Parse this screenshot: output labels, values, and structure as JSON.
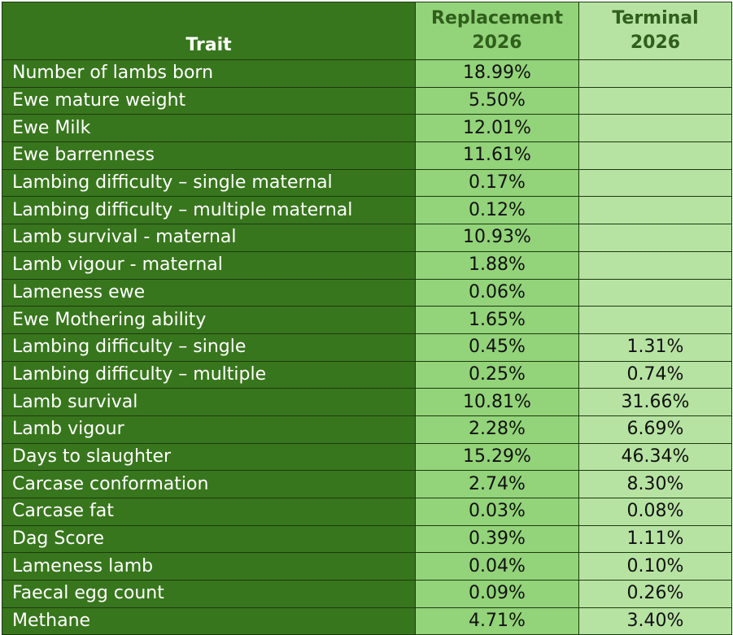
{
  "header": {
    "trait": "Trait",
    "replacement_line1": "Replacement",
    "replacement_line2": "2026",
    "terminal_line1": "Terminal",
    "terminal_line2": "2026"
  },
  "colors": {
    "trait_bg": "#38761d",
    "replacement_bg": "#93d37a",
    "terminal_bg": "#b6e3a2",
    "header_text": "#2f5f1a"
  },
  "rows": [
    {
      "trait": "Number of lambs born",
      "replacement": "18.99%",
      "terminal": ""
    },
    {
      "trait": "Ewe mature weight",
      "replacement": "5.50%",
      "terminal": ""
    },
    {
      "trait": "Ewe Milk",
      "replacement": "12.01%",
      "terminal": ""
    },
    {
      "trait": "Ewe barrenness",
      "replacement": "11.61%",
      "terminal": ""
    },
    {
      "trait": "Lambing difficulty – single maternal",
      "replacement": "0.17%",
      "terminal": ""
    },
    {
      "trait": "Lambing difficulty – multiple maternal",
      "replacement": "0.12%",
      "terminal": ""
    },
    {
      "trait": "Lamb survival - maternal",
      "replacement": "10.93%",
      "terminal": ""
    },
    {
      "trait": "Lamb vigour - maternal",
      "replacement": "1.88%",
      "terminal": ""
    },
    {
      "trait": "Lameness ewe",
      "replacement": "0.06%",
      "terminal": ""
    },
    {
      "trait": "Ewe Mothering ability",
      "replacement": "1.65%",
      "terminal": ""
    },
    {
      "trait": "Lambing difficulty – single",
      "replacement": "0.45%",
      "terminal": "1.31%"
    },
    {
      "trait": "Lambing difficulty – multiple",
      "replacement": "0.25%",
      "terminal": "0.74%"
    },
    {
      "trait": "Lamb survival",
      "replacement": "10.81%",
      "terminal": "31.66%"
    },
    {
      "trait": "Lamb vigour",
      "replacement": "2.28%",
      "terminal": "6.69%"
    },
    {
      "trait": "Days to slaughter",
      "replacement": "15.29%",
      "terminal": "46.34%"
    },
    {
      "trait": "Carcase conformation",
      "replacement": "2.74%",
      "terminal": "8.30%"
    },
    {
      "trait": "Carcase fat",
      "replacement": "0.03%",
      "terminal": "0.08%"
    },
    {
      "trait": "Dag Score",
      "replacement": "0.39%",
      "terminal": "1.11%"
    },
    {
      "trait": "Lameness lamb",
      "replacement": "0.04%",
      "terminal": "0.10%"
    },
    {
      "trait": "Faecal egg count",
      "replacement": "0.09%",
      "terminal": "0.26%"
    },
    {
      "trait": "Methane",
      "replacement": "4.71%",
      "terminal": "3.40%"
    }
  ]
}
